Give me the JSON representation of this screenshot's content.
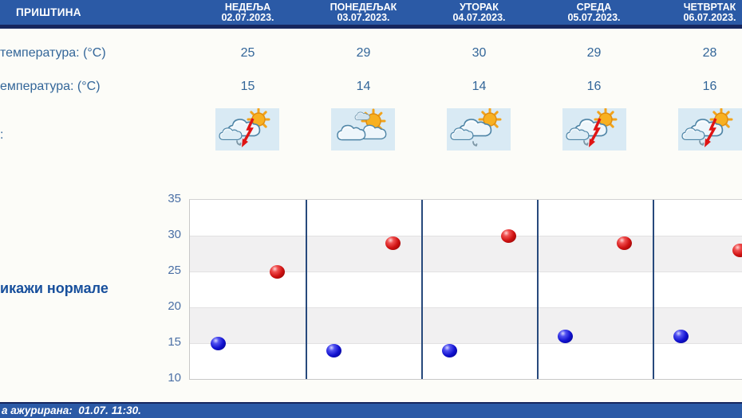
{
  "header": {
    "station": "ПРИШТИНА",
    "days": [
      {
        "name": "НЕДЕЉА",
        "date": "02.07.2023."
      },
      {
        "name": "ПОНЕДЕЉАК",
        "date": "03.07.2023."
      },
      {
        "name": "УТОРАК",
        "date": "04.07.2023."
      },
      {
        "name": "СРЕДА",
        "date": "05.07.2023."
      },
      {
        "name": "ЧЕТВРТАК",
        "date": "06.07.2023."
      }
    ]
  },
  "table": {
    "max_row_label": "температура: (°C)",
    "min_row_label": "емпература: (°C)",
    "icon_row_label": ":",
    "max_temps": [
      "25",
      "29",
      "30",
      "29",
      "28"
    ],
    "min_temps": [
      "15",
      "14",
      "14",
      "16",
      "16"
    ],
    "icons": [
      "thunderstorm-sun",
      "partly-cloudy",
      "rain-sun",
      "thunderstorm-sun",
      "thunderstorm-sun"
    ]
  },
  "links": {
    "show_normals": "икажи нормале"
  },
  "footer": {
    "updated": "а ажурирана:  01.07. 11:30."
  },
  "colors": {
    "bar_blue": "#2b5aa6",
    "navy": "#16265e",
    "text_blue": "#336699",
    "link_blue": "#174f9c",
    "max_dot_red": "#cf1111",
    "min_dot_blue": "#1111cf",
    "band_gray": "#f1f0f1",
    "tile_blue": "#d9eaf4"
  },
  "chart_data": {
    "type": "scatter",
    "categories": [
      "02.07.2023.",
      "03.07.2023.",
      "04.07.2023.",
      "05.07.2023.",
      "06.07.2023."
    ],
    "series": [
      {
        "name": "max-temperature",
        "color": "#cf1111",
        "values": [
          25,
          29,
          30,
          29,
          28
        ]
      },
      {
        "name": "min-temperature",
        "color": "#1111cf",
        "values": [
          15,
          14,
          14,
          16,
          16
        ]
      }
    ],
    "ylim": [
      10,
      35
    ],
    "yticks": [
      35,
      30,
      25,
      20,
      15,
      10
    ],
    "ytick_step": 5,
    "unit": "°C",
    "grid": "alternating-horizontal-bands",
    "band_ranges": [
      [
        15,
        20
      ],
      [
        25,
        30
      ]
    ],
    "column_separators": true,
    "legend": "none",
    "title": "",
    "xlabel": "",
    "ylabel": ""
  }
}
